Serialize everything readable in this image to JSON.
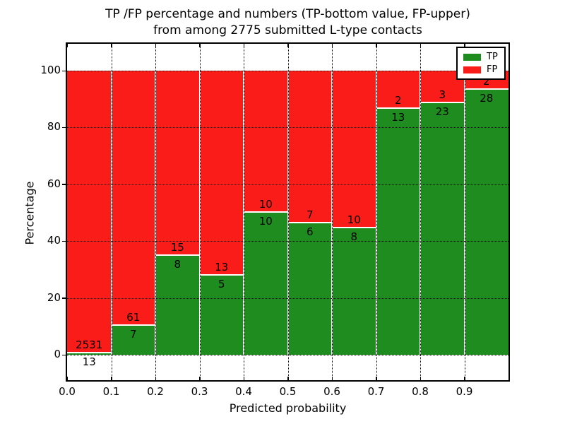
{
  "figure": {
    "title_line1": "TP /FP percentage and numbers (TP-bottom value, FP-upper)",
    "title_line2": "from among 2775 submitted L-type contacts"
  },
  "chart_data": {
    "type": "bar",
    "stacked": true,
    "normalized": "each bin stacked to 100%",
    "title": "TP /FP percentage and numbers (TP-bottom value, FP-upper)\nfrom among 2775 submitted L-type contacts",
    "xlabel": "Predicted probability",
    "ylabel": "Percentage",
    "total_contacts": 2775,
    "bin_edges": [
      0.0,
      0.1,
      0.2,
      0.3,
      0.4,
      0.5,
      0.6,
      0.7,
      0.8,
      0.9,
      1.0
    ],
    "x_tick_labels": [
      "0.0",
      "0.1",
      "0.2",
      "0.3",
      "0.4",
      "0.5",
      "0.6",
      "0.7",
      "0.8",
      "0.9"
    ],
    "y_ticks": [
      0,
      20,
      40,
      60,
      80,
      100
    ],
    "xlim": [
      0.0,
      1.0
    ],
    "ylim": [
      -9.5,
      109.5
    ],
    "grid": true,
    "grid_style": "dotted",
    "series": [
      {
        "name": "TP",
        "counts": [
          13,
          7,
          8,
          5,
          10,
          6,
          8,
          13,
          23,
          28
        ]
      },
      {
        "name": "FP",
        "counts": [
          2531,
          61,
          15,
          13,
          10,
          7,
          10,
          2,
          3,
          2
        ]
      }
    ],
    "tp_percent_per_bin": [
      0.51,
      10.29,
      34.78,
      27.78,
      50.0,
      46.15,
      44.44,
      86.67,
      88.46,
      93.33
    ],
    "legend": {
      "position": "upper right",
      "entries": [
        {
          "label": "TP",
          "color": "#1e8c1e"
        },
        {
          "label": "FP",
          "color": "#fa1c19"
        }
      ]
    },
    "colors": {
      "tp_green": "#1e8c1e",
      "fp_red": "#fa1c19",
      "bar_edge": "#ffffff",
      "axis": "#000000",
      "background": "#ffffff"
    }
  }
}
